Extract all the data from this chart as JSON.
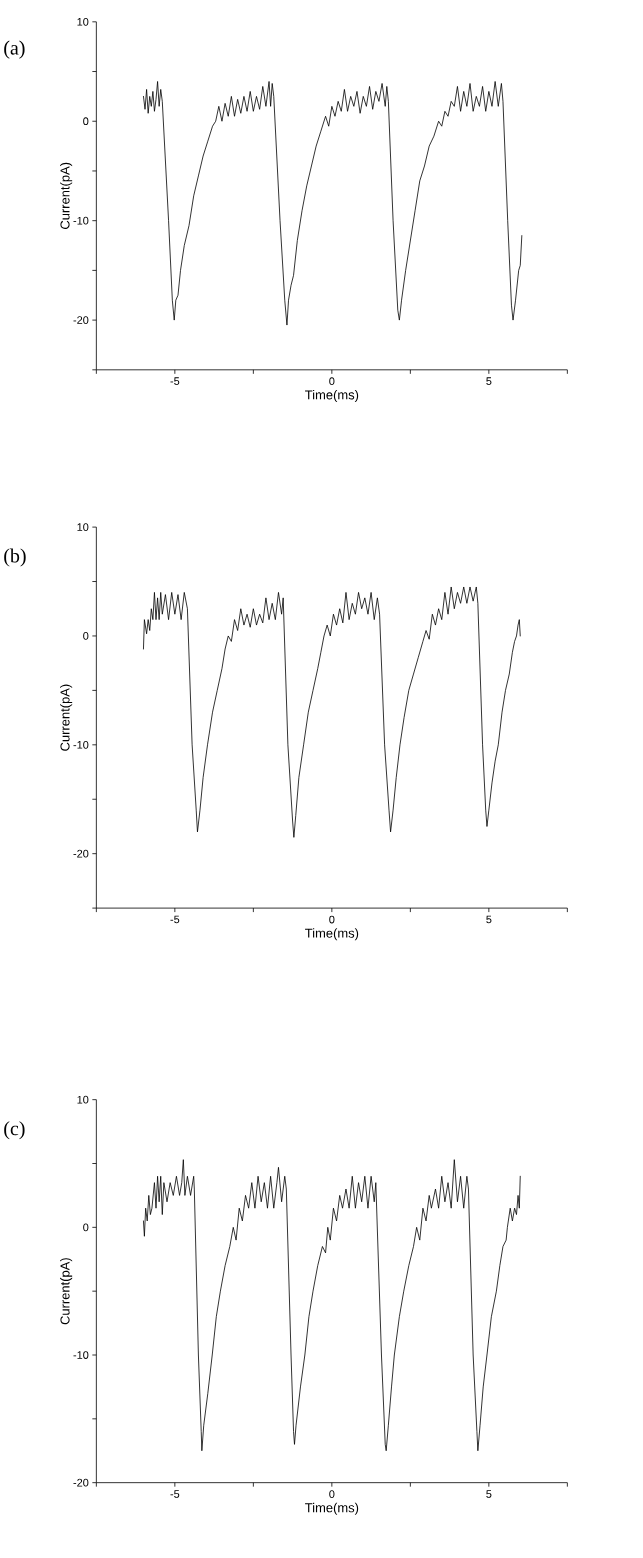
{
  "chart_data": [
    {
      "type": "line",
      "title": "(a)",
      "xlabel": "Time(ms)",
      "ylabel": "Current(pA)",
      "color": "#000000",
      "marker": "none",
      "line_style": "solid",
      "xlim": [
        -7.5,
        7.5
      ],
      "ylim": [
        -25,
        10
      ],
      "xticks": [
        {
          "value": -7.5,
          "label": null
        },
        -5,
        {
          "value": -2.5,
          "label": null
        },
        0,
        {
          "value": 2.5,
          "label": null
        },
        5,
        {
          "value": 7.5,
          "label": null
        }
      ],
      "yticks": [
        {
          "value": -25,
          "label": null
        },
        -20,
        {
          "value": -15,
          "label": null
        },
        -10,
        {
          "value": -5,
          "label": null
        },
        0,
        {
          "value": 5,
          "label": null
        },
        10
      ],
      "x": [
        -6.0,
        -5.95,
        -5.9,
        -5.85,
        -5.8,
        -5.75,
        -5.7,
        -5.65,
        -5.6,
        -5.55,
        -5.5,
        -5.45,
        -5.4,
        -5.2,
        -5.08,
        -5.02,
        -4.97,
        -4.9,
        -4.82,
        -4.7,
        -4.55,
        -4.4,
        -4.25,
        -4.1,
        -3.95,
        -3.8,
        -3.7,
        -3.6,
        -3.5,
        -3.4,
        -3.3,
        -3.2,
        -3.1,
        -3.0,
        -2.9,
        -2.8,
        -2.7,
        -2.6,
        -2.5,
        -2.4,
        -2.3,
        -2.2,
        -2.1,
        -2.0,
        -1.95,
        -1.9,
        -1.85,
        -1.65,
        -1.5,
        -1.43,
        -1.38,
        -1.3,
        -1.22,
        -1.1,
        -0.95,
        -0.8,
        -0.65,
        -0.5,
        -0.35,
        -0.2,
        -0.1,
        0.0,
        0.1,
        0.2,
        0.3,
        0.4,
        0.5,
        0.6,
        0.7,
        0.8,
        0.9,
        1.0,
        1.1,
        1.2,
        1.3,
        1.4,
        1.5,
        1.6,
        1.7,
        1.75,
        1.8,
        1.95,
        2.1,
        2.15,
        2.22,
        2.35,
        2.5,
        2.65,
        2.8,
        2.95,
        3.1,
        3.25,
        3.4,
        3.5,
        3.6,
        3.7,
        3.8,
        3.9,
        4.0,
        4.1,
        4.2,
        4.3,
        4.4,
        4.5,
        4.6,
        4.7,
        4.8,
        4.9,
        5.0,
        5.1,
        5.2,
        5.3,
        5.4,
        5.45,
        5.6,
        5.72,
        5.77,
        5.85,
        5.95,
        6.0,
        6.05
      ],
      "values": [
        2.5,
        1.2,
        3.2,
        0.8,
        2.5,
        1.5,
        3.0,
        1.0,
        2.2,
        4.0,
        1.5,
        3.2,
        2.0,
        -10,
        -18,
        -20,
        -18,
        -17.5,
        -15,
        -12.5,
        -10.5,
        -7.5,
        -5.5,
        -3.5,
        -2,
        -0.5,
        0,
        1.5,
        0,
        1.8,
        0.5,
        2.5,
        0.5,
        2.2,
        0.8,
        2.5,
        1.0,
        3.0,
        1.0,
        2.5,
        1.2,
        3.5,
        1.5,
        4.0,
        1.5,
        3.8,
        2.5,
        -10,
        -18,
        -20.5,
        -18,
        -16.5,
        -15.5,
        -12,
        -9,
        -6.5,
        -4.5,
        -2.5,
        -1,
        0.5,
        -0.5,
        1.5,
        0.5,
        2.0,
        1.0,
        3.2,
        1.0,
        2.5,
        1.5,
        3.0,
        0.8,
        2.5,
        1.5,
        3.5,
        1.2,
        3.0,
        2.0,
        3.8,
        1.5,
        3.5,
        2.0,
        -10,
        -19,
        -20,
        -18,
        -15,
        -12,
        -9,
        -6,
        -4.5,
        -2.5,
        -1.5,
        0,
        -0.5,
        1.0,
        0.5,
        2.0,
        1.5,
        3.5,
        1.0,
        3.0,
        1.5,
        3.8,
        1.0,
        2.5,
        1.5,
        3.5,
        1.0,
        3.0,
        1.5,
        4.0,
        1.5,
        3.8,
        2.0,
        -10,
        -18.5,
        -20,
        -18,
        -15,
        -14.5,
        -11.5
      ]
    },
    {
      "type": "line",
      "title": "(b)",
      "xlabel": "Time(ms)",
      "ylabel": "Current(pA)",
      "color": "#000000",
      "marker": "none",
      "line_style": "solid",
      "xlim": [
        -7.5,
        7.5
      ],
      "ylim": [
        -25,
        10
      ],
      "xticks": [
        {
          "value": -7.5,
          "label": null
        },
        -5,
        {
          "value": -2.5,
          "label": null
        },
        0,
        {
          "value": 2.5,
          "label": null
        },
        5,
        {
          "value": 7.5,
          "label": null
        }
      ],
      "yticks": [
        {
          "value": -25,
          "label": null
        },
        -20,
        {
          "value": -15,
          "label": null
        },
        -10,
        {
          "value": -5,
          "label": null
        },
        0,
        {
          "value": 5,
          "label": null
        },
        10
      ],
      "x": [
        -6.0,
        -5.97,
        -5.9,
        -5.85,
        -5.8,
        -5.75,
        -5.7,
        -5.65,
        -5.6,
        -5.55,
        -5.5,
        -5.45,
        -5.4,
        -5.3,
        -5.2,
        -5.1,
        -5.0,
        -4.9,
        -4.8,
        -4.7,
        -4.6,
        -4.45,
        -4.32,
        -4.28,
        -4.2,
        -4.1,
        -3.96,
        -3.8,
        -3.65,
        -3.5,
        -3.4,
        -3.3,
        -3.2,
        -3.1,
        -3.0,
        -2.9,
        -2.8,
        -2.7,
        -2.6,
        -2.5,
        -2.4,
        -2.3,
        -2.2,
        -2.1,
        -2.0,
        -1.9,
        -1.8,
        -1.7,
        -1.6,
        -1.55,
        -1.4,
        -1.25,
        -1.21,
        -1.15,
        -1.05,
        -0.9,
        -0.75,
        -0.6,
        -0.45,
        -0.35,
        -0.25,
        -0.15,
        -0.05,
        0.05,
        0.15,
        0.25,
        0.35,
        0.45,
        0.55,
        0.65,
        0.75,
        0.85,
        0.95,
        1.05,
        1.15,
        1.25,
        1.35,
        1.45,
        1.52,
        1.68,
        1.82,
        1.87,
        1.95,
        2.05,
        2.17,
        2.3,
        2.45,
        2.6,
        2.75,
        2.9,
        3.0,
        3.1,
        3.2,
        3.3,
        3.4,
        3.5,
        3.6,
        3.7,
        3.8,
        3.9,
        4.0,
        4.1,
        4.2,
        4.3,
        4.4,
        4.5,
        4.6,
        4.65,
        4.8,
        4.9,
        4.94,
        5.0,
        5.1,
        5.2,
        5.3,
        5.42,
        5.53,
        5.65,
        5.75,
        5.82,
        5.88,
        5.93,
        5.97,
        6.0
      ],
      "values": [
        -1.2,
        1.5,
        0.2,
        1.5,
        0.5,
        2.5,
        1.5,
        4.0,
        1.5,
        3.5,
        1.5,
        4.0,
        2.0,
        3.8,
        1.5,
        4.0,
        2.0,
        3.8,
        1.5,
        4.0,
        2.5,
        -10,
        -16,
        -18,
        -16,
        -13,
        -10,
        -7,
        -5,
        -3,
        -1.2,
        0,
        -0.5,
        1.5,
        0.5,
        2.5,
        1.0,
        2.0,
        0.8,
        2.5,
        1.0,
        2.0,
        1.2,
        3.5,
        1.5,
        3.0,
        1.5,
        4.0,
        2.0,
        3.5,
        -10,
        -17,
        -18.5,
        -16.5,
        -13,
        -10,
        -7,
        -5,
        -3,
        -1.5,
        0,
        1.0,
        0,
        2.0,
        1.0,
        2.5,
        1.2,
        4.0,
        1.5,
        3.0,
        2.0,
        4.0,
        2.5,
        3.5,
        2.0,
        4.0,
        1.5,
        3.5,
        2.0,
        -10,
        -16,
        -18,
        -16,
        -13,
        -10,
        -7.5,
        -5,
        -3.5,
        -2,
        -0.5,
        0.5,
        -0.3,
        2.0,
        1.0,
        2.5,
        1.5,
        4.0,
        2.0,
        4.5,
        2.5,
        4.0,
        3.0,
        4.5,
        3.0,
        4.5,
        3.2,
        4.5,
        3.0,
        -10,
        -16,
        -17.5,
        -16,
        -13.5,
        -11.5,
        -10,
        -7,
        -5,
        -3.5,
        -1.5,
        -0.5,
        0,
        1.0,
        1.5,
        0
      ]
    },
    {
      "type": "line",
      "title": "(c)",
      "xlabel": "Time(ms)",
      "ylabel": "Current(pA)",
      "color": "#000000",
      "marker": "none",
      "line_style": "solid",
      "xlim": [
        -7.5,
        7.5
      ],
      "ylim": [
        -20,
        10
      ],
      "xticks": [
        {
          "value": -7.5,
          "label": null
        },
        -5,
        {
          "value": -2.5,
          "label": null
        },
        0,
        {
          "value": 2.5,
          "label": null
        },
        5,
        {
          "value": 7.5,
          "label": null
        }
      ],
      "yticks": [
        -20,
        {
          "value": -15,
          "label": null
        },
        -10,
        {
          "value": -5,
          "label": null
        },
        0,
        {
          "value": 5,
          "label": null
        },
        10
      ],
      "x": [
        -6.0,
        -5.97,
        -5.93,
        -5.88,
        -5.83,
        -5.78,
        -5.73,
        -5.65,
        -5.6,
        -5.55,
        -5.5,
        -5.45,
        -5.4,
        -5.35,
        -5.25,
        -5.15,
        -5.05,
        -4.95,
        -4.85,
        -4.78,
        -4.73,
        -4.68,
        -4.6,
        -4.5,
        -4.4,
        -4.38,
        -4.25,
        -4.16,
        -4.14,
        -4.08,
        -3.95,
        -3.81,
        -3.68,
        -3.55,
        -3.4,
        -3.25,
        -3.14,
        -3.05,
        -2.95,
        -2.85,
        -2.75,
        -2.65,
        -2.55,
        -2.45,
        -2.35,
        -2.25,
        -2.15,
        -2.05,
        -1.95,
        -1.85,
        -1.75,
        -1.7,
        -1.6,
        -1.5,
        -1.45,
        -1.3,
        -1.22,
        -1.19,
        -1.14,
        -1.0,
        -0.86,
        -0.73,
        -0.6,
        -0.45,
        -0.3,
        -0.2,
        -0.13,
        -0.05,
        0.05,
        0.15,
        0.25,
        0.34,
        0.45,
        0.55,
        0.65,
        0.75,
        0.85,
        0.95,
        1.05,
        1.15,
        1.25,
        1.35,
        1.4,
        1.58,
        1.7,
        1.73,
        1.8,
        1.9,
        1.99,
        2.15,
        2.29,
        2.45,
        2.6,
        2.7,
        2.8,
        2.9,
        3.0,
        3.1,
        3.17,
        3.3,
        3.4,
        3.5,
        3.6,
        3.7,
        3.8,
        3.9,
        4.0,
        4.1,
        4.2,
        4.3,
        4.35,
        4.5,
        4.62,
        4.65,
        4.72,
        4.82,
        4.94,
        5.08,
        5.24,
        5.35,
        5.45,
        5.55,
        5.59,
        5.68,
        5.75,
        5.82,
        5.88,
        5.93,
        5.97,
        6.0
      ],
      "values": [
        0.5,
        -0.7,
        1.5,
        0.5,
        2.5,
        1.0,
        1.5,
        3.5,
        1.5,
        4.0,
        2.0,
        4.0,
        1.0,
        3.5,
        2.0,
        3.5,
        2.5,
        4.0,
        2.5,
        3.5,
        5.3,
        2.5,
        4.0,
        2.5,
        4.0,
        3.0,
        -10,
        -16,
        -17.5,
        -15.5,
        -13,
        -10,
        -7,
        -5,
        -3,
        -1.5,
        0,
        -1,
        1.5,
        0.5,
        2.5,
        1.5,
        3.5,
        1.5,
        4.0,
        2.0,
        3.5,
        1.5,
        4.0,
        1.5,
        3.5,
        4.7,
        2.0,
        4.0,
        3.0,
        -10,
        -16,
        -17,
        -15.5,
        -12.5,
        -10,
        -7,
        -5,
        -3,
        -1.5,
        -2,
        0,
        -1,
        1.5,
        0.5,
        2.5,
        1.5,
        3.0,
        1.5,
        4.0,
        1.5,
        3.5,
        2.0,
        4.0,
        1.5,
        4.0,
        2.0,
        3.5,
        -10,
        -17,
        -17.5,
        -15.5,
        -12.5,
        -10,
        -7,
        -5,
        -3,
        -1.5,
        0,
        -1,
        1.5,
        0.5,
        2.5,
        1.5,
        3.0,
        1.5,
        4.0,
        2.0,
        3.5,
        1.5,
        5.3,
        2.0,
        4.0,
        1.5,
        4.0,
        3.0,
        -10,
        -16,
        -17.5,
        -15.5,
        -12.5,
        -10,
        -7,
        -5,
        -3,
        -1.5,
        -1,
        0,
        1.5,
        0.5,
        1.5,
        1.0,
        2.5,
        1.5,
        4.0
      ]
    }
  ]
}
